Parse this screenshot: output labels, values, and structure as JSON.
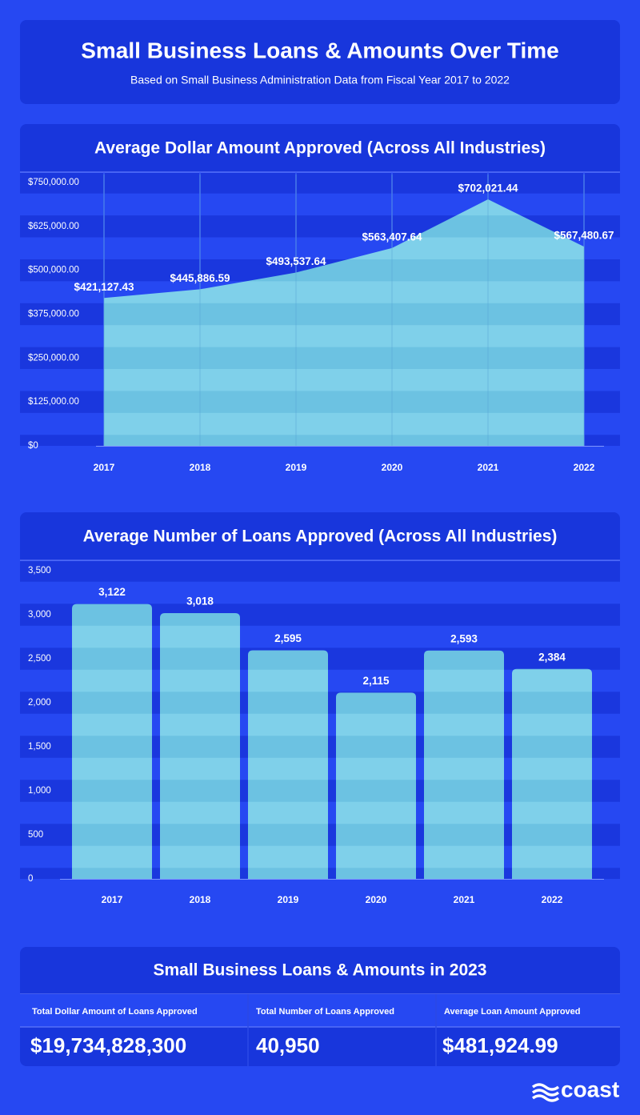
{
  "header": {
    "title": "Small Business Loans & Amounts Over Time",
    "subtitle": "Based on Small Business Administration Data from Fiscal Year 2017 to 2022"
  },
  "chart_data": [
    {
      "type": "area",
      "title": "Average Dollar Amount Approved (Across All Industries)",
      "categories": [
        "2017",
        "2018",
        "2019",
        "2020",
        "2021",
        "2022"
      ],
      "values": [
        421127.43,
        445886.59,
        493537.64,
        563407.64,
        702021.44,
        567480.67
      ],
      "value_labels": [
        "$421,127.43",
        "$445,886.59",
        "$493,537.64",
        "$563,407.64",
        "$702,021.44",
        "$567,480.67"
      ],
      "color": "#7fd0ea",
      "ylim": [
        0,
        750000
      ],
      "yticks": [
        {
          "value": 0,
          "label": "$0"
        },
        {
          "value": 125000,
          "label": "$125,000.00"
        },
        {
          "value": 250000,
          "label": "$250,000.00"
        },
        {
          "value": 375000,
          "label": "$375,000.00"
        },
        {
          "value": 500000,
          "label": "$500,000.00"
        },
        {
          "value": 625000,
          "label": "$625,000.00"
        },
        {
          "value": 750000,
          "label": "$750,000.00"
        }
      ]
    },
    {
      "type": "bar",
      "title": "Average Number of Loans Approved (Across All Industries)",
      "categories": [
        "2017",
        "2018",
        "2019",
        "2020",
        "2021",
        "2022"
      ],
      "values": [
        3122,
        3018,
        2595,
        2115,
        2593,
        2384
      ],
      "value_labels": [
        "3,122",
        "3,018",
        "2,595",
        "2,115",
        "2,593",
        "2,384"
      ],
      "color": "#7fd0ea",
      "ylim": [
        0,
        3500
      ],
      "yticks": [
        0,
        500,
        {
          "value": 1000,
          "label": "1,000"
        },
        {
          "value": 1500,
          "label": "1,500"
        },
        {
          "value": 2000,
          "label": "2,000"
        },
        {
          "value": 2500,
          "label": "2,500"
        },
        {
          "value": 3000,
          "label": "3,000"
        },
        {
          "value": 3500,
          "label": "3,500"
        }
      ]
    }
  ],
  "summary": {
    "title": "Small Business Loans & Amounts in 2023",
    "headers": [
      "Total Dollar Amount of Loans Approved",
      "Total Number of Loans Approved",
      "Average Loan Amount Approved"
    ],
    "values": [
      "$19,734,828,300",
      "40,950",
      "$481,924.99"
    ]
  },
  "logo": "coast"
}
